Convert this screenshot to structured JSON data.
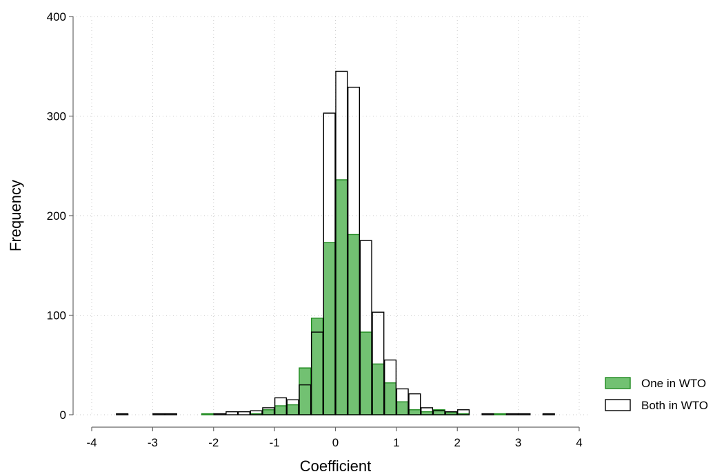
{
  "chart_data": {
    "type": "bar",
    "title": "",
    "xlabel": "Coefficient",
    "ylabel": "Frequency",
    "xlim": [
      -4,
      4
    ],
    "ylim": [
      0,
      400
    ],
    "x_ticks": [
      -4,
      -3,
      -2,
      -1,
      0,
      1,
      2,
      3,
      4
    ],
    "y_ticks": [
      0,
      100,
      200,
      300,
      400
    ],
    "bin_width": 0.2,
    "grid": true,
    "legend_position": "right-bottom",
    "series": [
      {
        "name": "One in WTO",
        "fill": "#72c172",
        "stroke": "#1f8a1f",
        "bins": [
          {
            "x": -2.1,
            "y": 1
          },
          {
            "x": -1.3,
            "y": 1
          },
          {
            "x": -1.1,
            "y": 5
          },
          {
            "x": -0.9,
            "y": 9
          },
          {
            "x": -0.7,
            "y": 10
          },
          {
            "x": -0.5,
            "y": 47
          },
          {
            "x": -0.3,
            "y": 97
          },
          {
            "x": -0.1,
            "y": 173
          },
          {
            "x": 0.1,
            "y": 236
          },
          {
            "x": 0.3,
            "y": 181
          },
          {
            "x": 0.5,
            "y": 83
          },
          {
            "x": 0.7,
            "y": 51
          },
          {
            "x": 0.9,
            "y": 32
          },
          {
            "x": 1.1,
            "y": 13
          },
          {
            "x": 1.3,
            "y": 5
          },
          {
            "x": 1.5,
            "y": 3
          },
          {
            "x": 1.7,
            "y": 5
          },
          {
            "x": 1.9,
            "y": 2
          },
          {
            "x": 2.1,
            "y": 1
          },
          {
            "x": 2.7,
            "y": 1
          }
        ]
      },
      {
        "name": "Both in WTO",
        "fill": "none",
        "stroke": "#000000",
        "bins": [
          {
            "x": -3.5,
            "y": 1
          },
          {
            "x": -2.9,
            "y": 1
          },
          {
            "x": -2.7,
            "y": 1
          },
          {
            "x": -1.9,
            "y": 1
          },
          {
            "x": -1.7,
            "y": 3
          },
          {
            "x": -1.5,
            "y": 3
          },
          {
            "x": -1.3,
            "y": 4
          },
          {
            "x": -1.1,
            "y": 7
          },
          {
            "x": -0.9,
            "y": 17
          },
          {
            "x": -0.7,
            "y": 15
          },
          {
            "x": -0.5,
            "y": 30
          },
          {
            "x": -0.3,
            "y": 83
          },
          {
            "x": -0.1,
            "y": 303
          },
          {
            "x": 0.1,
            "y": 345
          },
          {
            "x": 0.3,
            "y": 329
          },
          {
            "x": 0.5,
            "y": 175
          },
          {
            "x": 0.7,
            "y": 103
          },
          {
            "x": 0.9,
            "y": 55
          },
          {
            "x": 1.1,
            "y": 26
          },
          {
            "x": 1.3,
            "y": 21
          },
          {
            "x": 1.5,
            "y": 7
          },
          {
            "x": 1.7,
            "y": 4
          },
          {
            "x": 1.9,
            "y": 3
          },
          {
            "x": 2.1,
            "y": 5
          },
          {
            "x": 2.5,
            "y": 1
          },
          {
            "x": 2.9,
            "y": 1
          },
          {
            "x": 3.1,
            "y": 1
          },
          {
            "x": 3.5,
            "y": 1
          }
        ]
      }
    ]
  }
}
